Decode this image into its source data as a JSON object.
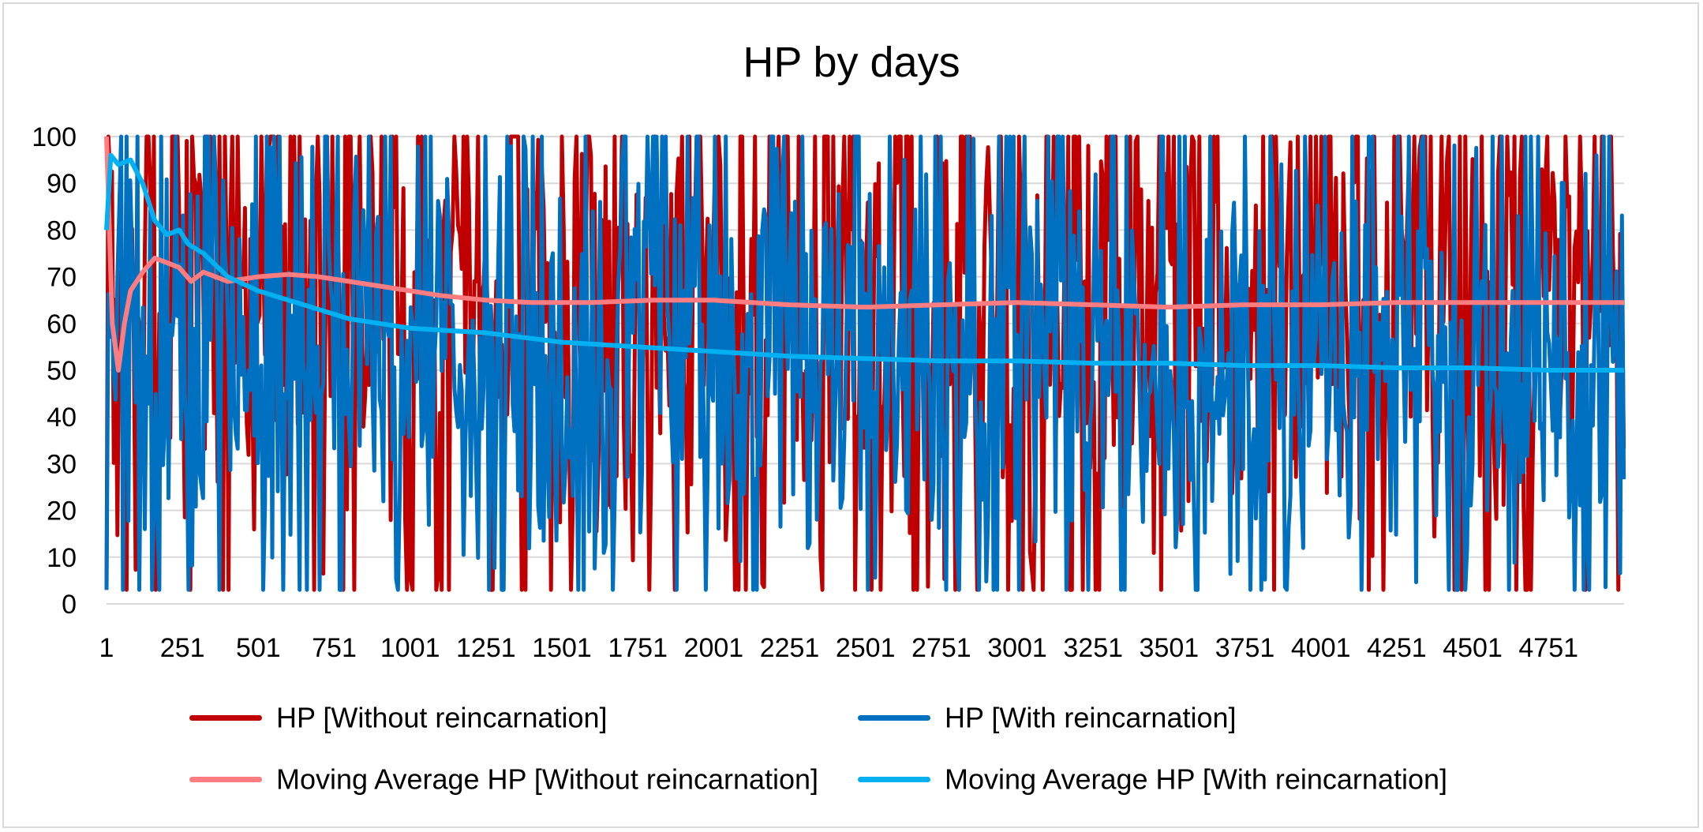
{
  "chart_data": {
    "type": "line",
    "title": "HP by days",
    "xlabel": "",
    "ylabel": "",
    "x_range": [
      1,
      5000
    ],
    "ylim": [
      0,
      100
    ],
    "y_ticks": [
      0,
      10,
      20,
      30,
      40,
      50,
      60,
      70,
      80,
      90,
      100
    ],
    "x_tick_labels": [
      "1",
      "251",
      "501",
      "751",
      "1001",
      "1251",
      "1501",
      "1751",
      "2001",
      "2251",
      "2501",
      "2751",
      "3001",
      "3251",
      "3501",
      "3751",
      "4001",
      "4251",
      "4501",
      "4751"
    ],
    "grid": true,
    "legend_position": "bottom",
    "colors": {
      "hp_without": "#c00000",
      "hp_with": "#0070c0",
      "ma_without": "#ff7c80",
      "ma_with": "#00b0f0",
      "grid": "#d9d9d9"
    },
    "series": [
      {
        "name": "HP [Without reincarnation]",
        "color": "#c00000",
        "description_values": "noisy daily HP oscillating between ~3 and 100, averaging ~64",
        "summary": {
          "min": 3,
          "max": 100,
          "mean": 64
        }
      },
      {
        "name": "HP [With reincarnation]",
        "color": "#0070c0",
        "summary": {
          "min": 3,
          "max": 100,
          "mean": 50
        }
      },
      {
        "name": "Moving Average HP [Without reincarnation]",
        "color": "#ff7c80",
        "points": [
          [
            1,
            100
          ],
          [
            20,
            60
          ],
          [
            40,
            50
          ],
          [
            60,
            60
          ],
          [
            80,
            67
          ],
          [
            120,
            71
          ],
          [
            160,
            74
          ],
          [
            200,
            73
          ],
          [
            240,
            72
          ],
          [
            280,
            69
          ],
          [
            320,
            71
          ],
          [
            400,
            69
          ],
          [
            500,
            70
          ],
          [
            600,
            70.5
          ],
          [
            700,
            70
          ],
          [
            800,
            69
          ],
          [
            900,
            68
          ],
          [
            1000,
            67
          ],
          [
            1100,
            66
          ],
          [
            1250,
            65
          ],
          [
            1400,
            64.5
          ],
          [
            1600,
            64.5
          ],
          [
            1800,
            65
          ],
          [
            2000,
            65
          ],
          [
            2250,
            64
          ],
          [
            2500,
            63.5
          ],
          [
            2750,
            64
          ],
          [
            3000,
            64.5
          ],
          [
            3250,
            64
          ],
          [
            3500,
            63.5
          ],
          [
            3750,
            64
          ],
          [
            4000,
            64
          ],
          [
            4250,
            64.5
          ],
          [
            4500,
            64.5
          ],
          [
            4750,
            64.5
          ],
          [
            5000,
            64.5
          ]
        ]
      },
      {
        "name": "Moving Average HP [With reincarnation]",
        "color": "#00b0f0",
        "points": [
          [
            1,
            80
          ],
          [
            15,
            96
          ],
          [
            40,
            94
          ],
          [
            80,
            95
          ],
          [
            120,
            90
          ],
          [
            160,
            82
          ],
          [
            200,
            79
          ],
          [
            240,
            80
          ],
          [
            270,
            77
          ],
          [
            320,
            75
          ],
          [
            400,
            70
          ],
          [
            500,
            67
          ],
          [
            600,
            65
          ],
          [
            700,
            63
          ],
          [
            800,
            61
          ],
          [
            900,
            60
          ],
          [
            1000,
            59
          ],
          [
            1250,
            58
          ],
          [
            1500,
            56
          ],
          [
            1750,
            55
          ],
          [
            2000,
            54
          ],
          [
            2250,
            53
          ],
          [
            2500,
            52.5
          ],
          [
            2750,
            52
          ],
          [
            3000,
            52
          ],
          [
            3250,
            51.5
          ],
          [
            3500,
            51.5
          ],
          [
            3750,
            51
          ],
          [
            4000,
            51
          ],
          [
            4250,
            50.5
          ],
          [
            4500,
            50.5
          ],
          [
            4750,
            50
          ],
          [
            5000,
            50
          ]
        ]
      }
    ]
  },
  "legend": [
    {
      "label": "HP [Without reincarnation]",
      "color": "#c00000"
    },
    {
      "label": "HP [With reincarnation]",
      "color": "#0070c0"
    },
    {
      "label": "Moving Average HP [Without reincarnation]",
      "color": "#ff7c80"
    },
    {
      "label": "Moving Average HP [With reincarnation]",
      "color": "#00b0f0"
    }
  ]
}
